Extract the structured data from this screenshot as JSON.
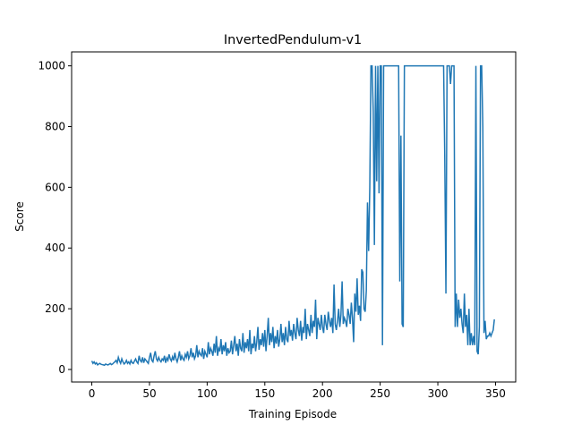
{
  "chart_data": {
    "type": "line",
    "title": "InvertedPendulum-v1",
    "x_label": "Training Episode",
    "y_label": "Score",
    "color": "#1f77b4",
    "xlim": [
      -17.5,
      367.5
    ],
    "ylim": [
      -41.3,
      1046
    ],
    "xticks": [
      0,
      50,
      100,
      150,
      200,
      250,
      300,
      350
    ],
    "yticks": [
      0,
      200,
      400,
      600,
      800,
      1000
    ],
    "x": [
      0,
      1,
      2,
      3,
      4,
      5,
      6,
      7,
      8,
      9,
      10,
      11,
      12,
      13,
      14,
      15,
      16,
      17,
      18,
      19,
      20,
      21,
      22,
      23,
      24,
      25,
      26,
      27,
      28,
      29,
      30,
      31,
      32,
      33,
      34,
      35,
      36,
      37,
      38,
      39,
      40,
      41,
      42,
      43,
      44,
      45,
      46,
      47,
      48,
      49,
      50,
      51,
      52,
      53,
      54,
      55,
      56,
      57,
      58,
      59,
      60,
      61,
      62,
      63,
      64,
      65,
      66,
      67,
      68,
      69,
      70,
      71,
      72,
      73,
      74,
      75,
      76,
      77,
      78,
      79,
      80,
      81,
      82,
      83,
      84,
      85,
      86,
      87,
      88,
      89,
      90,
      91,
      92,
      93,
      94,
      95,
      96,
      97,
      98,
      99,
      100,
      101,
      102,
      103,
      104,
      105,
      106,
      107,
      108,
      109,
      110,
      111,
      112,
      113,
      114,
      115,
      116,
      117,
      118,
      119,
      120,
      121,
      122,
      123,
      124,
      125,
      126,
      127,
      128,
      129,
      130,
      131,
      132,
      133,
      134,
      135,
      136,
      137,
      138,
      139,
      140,
      141,
      142,
      143,
      144,
      145,
      146,
      147,
      148,
      149,
      150,
      151,
      152,
      153,
      154,
      155,
      156,
      157,
      158,
      159,
      160,
      161,
      162,
      163,
      164,
      165,
      166,
      167,
      168,
      169,
      170,
      171,
      172,
      173,
      174,
      175,
      176,
      177,
      178,
      179,
      180,
      181,
      182,
      183,
      184,
      185,
      186,
      187,
      188,
      189,
      190,
      191,
      192,
      193,
      194,
      195,
      196,
      197,
      198,
      199,
      200,
      201,
      202,
      203,
      204,
      205,
      206,
      207,
      208,
      209,
      210,
      211,
      212,
      213,
      214,
      215,
      216,
      217,
      218,
      219,
      220,
      221,
      222,
      223,
      224,
      225,
      226,
      227,
      228,
      229,
      230,
      231,
      232,
      233,
      234,
      235,
      236,
      237,
      238,
      239,
      240,
      241,
      242,
      243,
      244,
      245,
      246,
      247,
      248,
      249,
      250,
      251,
      252,
      253,
      254,
      255,
      256,
      257,
      258,
      259,
      260,
      261,
      262,
      263,
      264,
      265,
      266,
      267,
      268,
      269,
      270,
      271,
      272,
      273,
      274,
      275,
      276,
      277,
      278,
      279,
      280,
      281,
      282,
      283,
      284,
      285,
      286,
      287,
      288,
      289,
      290,
      291,
      292,
      293,
      294,
      295,
      296,
      297,
      298,
      299,
      300,
      301,
      302,
      303,
      304,
      305,
      306,
      307,
      308,
      309,
      310,
      311,
      312,
      313,
      314,
      315,
      316,
      317,
      318,
      319,
      320,
      321,
      322,
      323,
      324,
      325,
      326,
      327,
      328,
      329,
      330,
      331,
      332,
      333,
      334,
      335,
      336,
      337,
      338,
      339,
      340,
      341,
      342,
      343,
      344,
      345,
      346,
      347,
      348,
      349
    ],
    "values": [
      28,
      20,
      25,
      18,
      22,
      15,
      18,
      20,
      17,
      16,
      15,
      14,
      18,
      16,
      15,
      17,
      20,
      16,
      18,
      22,
      25,
      30,
      22,
      40,
      28,
      20,
      35,
      25,
      18,
      22,
      30,
      20,
      25,
      18,
      30,
      22,
      20,
      28,
      35,
      25,
      20,
      45,
      30,
      25,
      40,
      22,
      35,
      30,
      25,
      20,
      40,
      55,
      30,
      25,
      45,
      60,
      35,
      28,
      40,
      30,
      25,
      35,
      30,
      45,
      22,
      38,
      30,
      50,
      35,
      28,
      42,
      30,
      55,
      35,
      25,
      40,
      60,
      30,
      45,
      35,
      30,
      50,
      40,
      60,
      35,
      45,
      70,
      40,
      55,
      35,
      45,
      80,
      40,
      60,
      50,
      45,
      70,
      35,
      60,
      50,
      40,
      90,
      50,
      70,
      60,
      45,
      85,
      55,
      110,
      45,
      70,
      60,
      100,
      50,
      80,
      60,
      90,
      45,
      70,
      55,
      60,
      95,
      50,
      80,
      110,
      60,
      85,
      45,
      100,
      70,
      60,
      120,
      55,
      90,
      70,
      100,
      60,
      130,
      50,
      85,
      70,
      110,
      60,
      90,
      140,
      65,
      100,
      80,
      120,
      75,
      130,
      60,
      110,
      170,
      80,
      120,
      90,
      140,
      70,
      110,
      85,
      130,
      75,
      100,
      150,
      90,
      120,
      80,
      140,
      100,
      90,
      160,
      110,
      130,
      95,
      150,
      120,
      100,
      170,
      130,
      110,
      160,
      95,
      140,
      120,
      200,
      100,
      150,
      130,
      110,
      180,
      120,
      160,
      140,
      230,
      100,
      170,
      150,
      130,
      180,
      140,
      120,
      180,
      150,
      130,
      190,
      160,
      140,
      170,
      120,
      280,
      150,
      130,
      160,
      200,
      140,
      180,
      290,
      150,
      170,
      160,
      140,
      200,
      180,
      150,
      220,
      170,
      90,
      250,
      190,
      300,
      180,
      210,
      160,
      330,
      320,
      200,
      190,
      260,
      550,
      390,
      600,
      1000,
      1000,
      850,
      410,
      1000,
      620,
      1000,
      580,
      1000,
      1000,
      80,
      1000,
      1000,
      1000,
      1000,
      1000,
      1000,
      1000,
      1000,
      1000,
      1000,
      1000,
      1000,
      1000,
      1000,
      290,
      770,
      150,
      140,
      1000,
      1000,
      1000,
      1000,
      1000,
      1000,
      1000,
      1000,
      1000,
      1000,
      1000,
      1000,
      1000,
      1000,
      1000,
      1000,
      1000,
      1000,
      1000,
      1000,
      1000,
      1000,
      1000,
      1000,
      1000,
      1000,
      1000,
      1000,
      1000,
      1000,
      1000,
      1000,
      1000,
      1000,
      1000,
      700,
      250,
      1000,
      1000,
      1000,
      940,
      1000,
      1000,
      1000,
      140,
      250,
      140,
      230,
      170,
      200,
      150,
      120,
      250,
      140,
      180,
      80,
      200,
      80,
      120,
      80,
      110,
      80,
      1000,
      60,
      50,
      140,
      1000,
      1000,
      800,
      120,
      160,
      100,
      110,
      110,
      120,
      110,
      120,
      130,
      165
    ]
  }
}
